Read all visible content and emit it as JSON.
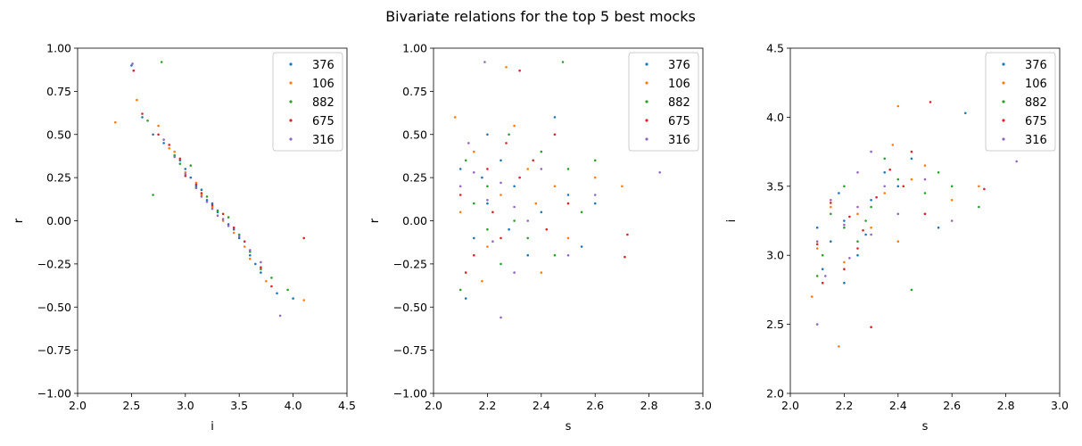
{
  "figure_title": "Bivariate relations for the top 5 best mocks",
  "chart_data": [
    {
      "type": "scatter",
      "title": "",
      "xlabel": "i",
      "ylabel": "r",
      "xlim": [
        2.0,
        4.5
      ],
      "ylim": [
        -1.0,
        1.0
      ],
      "xticks": [
        2.0,
        2.5,
        3.0,
        3.5,
        4.0,
        4.5
      ],
      "yticks": [
        -1.0,
        -0.75,
        -0.5,
        -0.25,
        0.0,
        0.25,
        0.5,
        0.75,
        1.0
      ],
      "xtick_labels": [
        "2.0",
        "2.5",
        "3.0",
        "3.5",
        "4.0",
        "4.5"
      ],
      "ytick_labels": [
        "−1.00",
        "−0.75",
        "−0.50",
        "−0.25",
        "0.00",
        "0.25",
        "0.50",
        "0.75",
        "1.00"
      ],
      "legend_position": "top-right",
      "grid": false,
      "series": [
        {
          "name": "376",
          "color": "#1f77b4",
          "points": [
            [
              3.2,
              0.12
            ],
            [
              3.0,
              0.3
            ],
            [
              3.45,
              -0.05
            ],
            [
              3.6,
              -0.2
            ],
            [
              2.8,
              0.45
            ],
            [
              3.3,
              0.05
            ],
            [
              3.1,
              0.2
            ],
            [
              3.7,
              -0.3
            ],
            [
              2.6,
              0.6
            ],
            [
              3.85,
              -0.42
            ],
            [
              2.5,
              0.9
            ],
            [
              3.25,
              0.1
            ],
            [
              2.95,
              0.35
            ],
            [
              3.5,
              -0.1
            ],
            [
              3.15,
              0.18
            ],
            [
              4.0,
              -0.45
            ],
            [
              2.7,
              0.5
            ],
            [
              3.4,
              -0.02
            ],
            [
              3.05,
              0.25
            ],
            [
              3.65,
              -0.25
            ]
          ]
        },
        {
          "name": "106",
          "color": "#ff7f0e",
          "points": [
            [
              2.35,
              0.57
            ],
            [
              3.15,
              0.15
            ],
            [
              2.9,
              0.4
            ],
            [
              3.55,
              -0.15
            ],
            [
              3.35,
              0.0
            ],
            [
              2.75,
              0.55
            ],
            [
              3.75,
              -0.35
            ],
            [
              3.0,
              0.28
            ],
            [
              3.25,
              0.08
            ],
            [
              2.55,
              0.7
            ],
            [
              4.1,
              -0.46
            ],
            [
              3.45,
              -0.07
            ],
            [
              3.1,
              0.22
            ],
            [
              2.85,
              0.42
            ],
            [
              3.6,
              -0.22
            ]
          ]
        },
        {
          "name": "882",
          "color": "#2ca02c",
          "points": [
            [
              2.78,
              0.92
            ],
            [
              3.05,
              0.32
            ],
            [
              3.5,
              -0.08
            ],
            [
              3.3,
              0.06
            ],
            [
              2.9,
              0.38
            ],
            [
              3.7,
              -0.28
            ],
            [
              3.2,
              0.14
            ],
            [
              3.95,
              -0.4
            ],
            [
              2.65,
              0.58
            ],
            [
              3.4,
              0.02
            ],
            [
              3.1,
              0.19
            ],
            [
              3.6,
              -0.18
            ],
            [
              2.95,
              0.33
            ],
            [
              3.8,
              -0.33
            ],
            [
              2.7,
              0.15
            ]
          ]
        },
        {
          "name": "675",
          "color": "#d62728",
          "points": [
            [
              2.52,
              0.87
            ],
            [
              3.0,
              0.26
            ],
            [
              3.35,
              0.04
            ],
            [
              3.15,
              0.16
            ],
            [
              2.85,
              0.44
            ],
            [
              3.55,
              -0.12
            ],
            [
              3.7,
              -0.27
            ],
            [
              2.6,
              0.62
            ],
            [
              3.25,
              0.09
            ],
            [
              4.1,
              -0.1
            ],
            [
              3.45,
              -0.04
            ],
            [
              2.95,
              0.36
            ],
            [
              3.1,
              0.21
            ],
            [
              3.8,
              -0.38
            ],
            [
              2.75,
              0.5
            ]
          ]
        },
        {
          "name": "316",
          "color": "#9467bd",
          "points": [
            [
              3.2,
              0.11
            ],
            [
              3.3,
              0.03
            ],
            [
              3.1,
              0.19
            ],
            [
              3.4,
              -0.03
            ],
            [
              3.0,
              0.27
            ],
            [
              3.5,
              -0.09
            ],
            [
              2.9,
              0.37
            ],
            [
              3.6,
              -0.17
            ],
            [
              2.8,
              0.47
            ],
            [
              3.7,
              -0.24
            ],
            [
              2.51,
              0.91
            ],
            [
              3.88,
              -0.55
            ],
            [
              3.25,
              0.07
            ],
            [
              3.15,
              0.14
            ],
            [
              3.35,
              0.01
            ]
          ]
        }
      ]
    },
    {
      "type": "scatter",
      "title": "",
      "xlabel": "s",
      "ylabel": "r",
      "xlim": [
        2.0,
        3.0
      ],
      "ylim": [
        -1.0,
        1.0
      ],
      "xticks": [
        2.0,
        2.2,
        2.4,
        2.6,
        2.8,
        3.0
      ],
      "yticks": [
        -1.0,
        -0.75,
        -0.5,
        -0.25,
        0.0,
        0.25,
        0.5,
        0.75,
        1.0
      ],
      "xtick_labels": [
        "2.0",
        "2.2",
        "2.4",
        "2.6",
        "2.8",
        "3.0"
      ],
      "ytick_labels": [
        "−1.00",
        "−0.75",
        "−0.50",
        "−0.25",
        "0.00",
        "0.25",
        "0.50",
        "0.75",
        "1.00"
      ],
      "legend_position": "top-right",
      "grid": false,
      "series": [
        {
          "name": "376",
          "color": "#1f77b4",
          "points": [
            [
              2.2,
              0.1
            ],
            [
              2.3,
              0.2
            ],
            [
              2.15,
              -0.1
            ],
            [
              2.4,
              0.05
            ],
            [
              2.25,
              0.35
            ],
            [
              2.1,
              0.3
            ],
            [
              2.5,
              0.15
            ],
            [
              2.35,
              -0.2
            ],
            [
              2.2,
              0.5
            ],
            [
              2.6,
              0.1
            ],
            [
              2.12,
              -0.45
            ],
            [
              2.45,
              0.6
            ],
            [
              2.28,
              -0.05
            ],
            [
              2.18,
              0.25
            ],
            [
              2.55,
              -0.15
            ]
          ]
        },
        {
          "name": "106",
          "color": "#ff7f0e",
          "points": [
            [
              2.25,
              0.15
            ],
            [
              2.1,
              0.05
            ],
            [
              2.35,
              0.3
            ],
            [
              2.2,
              -0.15
            ],
            [
              2.45,
              0.2
            ],
            [
              2.3,
              0.55
            ],
            [
              2.15,
              0.4
            ],
            [
              2.5,
              -0.1
            ],
            [
              2.4,
              -0.3
            ],
            [
              2.6,
              0.25
            ],
            [
              2.08,
              0.6
            ],
            [
              2.27,
              0.89
            ],
            [
              2.7,
              0.2
            ],
            [
              2.18,
              -0.35
            ],
            [
              2.38,
              0.1
            ]
          ]
        },
        {
          "name": "882",
          "color": "#2ca02c",
          "points": [
            [
              2.2,
              0.2
            ],
            [
              2.3,
              0.0
            ],
            [
              2.12,
              0.35
            ],
            [
              2.4,
              0.4
            ],
            [
              2.25,
              -0.25
            ],
            [
              2.5,
              0.3
            ],
            [
              2.15,
              0.1
            ],
            [
              2.35,
              -0.1
            ],
            [
              2.48,
              0.92
            ],
            [
              2.1,
              -0.4
            ],
            [
              2.55,
              0.05
            ],
            [
              2.28,
              0.5
            ],
            [
              2.2,
              -0.05
            ],
            [
              2.45,
              -0.2
            ],
            [
              2.6,
              0.35
            ]
          ]
        },
        {
          "name": "675",
          "color": "#d62728",
          "points": [
            [
              2.22,
              0.05
            ],
            [
              2.32,
              0.25
            ],
            [
              2.1,
              0.15
            ],
            [
              2.42,
              -0.05
            ],
            [
              2.27,
              0.45
            ],
            [
              2.15,
              -0.2
            ],
            [
              2.5,
              0.1
            ],
            [
              2.37,
              0.35
            ],
            [
              2.2,
              0.3
            ],
            [
              2.32,
              0.87
            ],
            [
              2.72,
              -0.08
            ],
            [
              2.71,
              -0.21
            ],
            [
              2.12,
              -0.3
            ],
            [
              2.45,
              0.5
            ],
            [
              2.25,
              -0.1
            ]
          ]
        },
        {
          "name": "316",
          "color": "#9467bd",
          "points": [
            [
              2.2,
              0.12
            ],
            [
              2.25,
              0.22
            ],
            [
              2.3,
              0.08
            ],
            [
              2.15,
              0.28
            ],
            [
              2.35,
              0.0
            ],
            [
              2.1,
              0.2
            ],
            [
              2.4,
              0.3
            ],
            [
              2.22,
              -0.12
            ],
            [
              2.19,
              0.92
            ],
            [
              2.84,
              0.28
            ],
            [
              2.25,
              -0.56
            ],
            [
              2.5,
              -0.2
            ],
            [
              2.13,
              0.45
            ],
            [
              2.6,
              0.15
            ],
            [
              2.3,
              -0.3
            ]
          ]
        }
      ]
    },
    {
      "type": "scatter",
      "title": "",
      "xlabel": "s",
      "ylabel": "i",
      "xlim": [
        2.0,
        3.0
      ],
      "ylim": [
        2.0,
        4.5
      ],
      "xticks": [
        2.0,
        2.2,
        2.4,
        2.6,
        2.8,
        3.0
      ],
      "yticks": [
        2.0,
        2.5,
        3.0,
        3.5,
        4.0,
        4.5
      ],
      "xtick_labels": [
        "2.0",
        "2.2",
        "2.4",
        "2.6",
        "2.8",
        "3.0"
      ],
      "ytick_labels": [
        "2.0",
        "2.5",
        "3.0",
        "3.5",
        "4.0",
        "4.5"
      ],
      "legend_position": "top-right",
      "grid": false,
      "series": [
        {
          "name": "376",
          "color": "#1f77b4",
          "points": [
            [
              2.2,
              3.25
            ],
            [
              2.3,
              3.4
            ],
            [
              2.15,
              3.1
            ],
            [
              2.4,
              3.5
            ],
            [
              2.25,
              3.0
            ],
            [
              2.1,
              3.2
            ],
            [
              2.5,
              3.3
            ],
            [
              2.35,
              3.6
            ],
            [
              2.2,
              2.8
            ],
            [
              2.65,
              4.03
            ],
            [
              2.12,
              2.9
            ],
            [
              2.45,
              3.7
            ],
            [
              2.28,
              3.15
            ],
            [
              2.18,
              3.45
            ],
            [
              2.55,
              3.2
            ]
          ]
        },
        {
          "name": "106",
          "color": "#ff7f0e",
          "points": [
            [
              2.25,
              3.3
            ],
            [
              2.1,
              3.05
            ],
            [
              2.35,
              3.45
            ],
            [
              2.2,
              2.95
            ],
            [
              2.45,
              3.55
            ],
            [
              2.3,
              3.2
            ],
            [
              2.15,
              3.35
            ],
            [
              2.5,
              3.65
            ],
            [
              2.4,
              3.1
            ],
            [
              2.6,
              3.4
            ],
            [
              2.18,
              2.34
            ],
            [
              2.4,
              4.08
            ],
            [
              2.7,
              3.5
            ],
            [
              2.08,
              2.7
            ],
            [
              2.38,
              3.8
            ]
          ]
        },
        {
          "name": "882",
          "color": "#2ca02c",
          "points": [
            [
              2.2,
              3.2
            ],
            [
              2.3,
              3.35
            ],
            [
              2.12,
              3.0
            ],
            [
              2.4,
              3.55
            ],
            [
              2.25,
              3.1
            ],
            [
              2.5,
              3.45
            ],
            [
              2.15,
              3.3
            ],
            [
              2.35,
              3.7
            ],
            [
              2.45,
              2.75
            ],
            [
              2.1,
              2.85
            ],
            [
              2.55,
              3.6
            ],
            [
              2.28,
              3.25
            ],
            [
              2.2,
              3.5
            ],
            [
              2.7,
              3.35
            ],
            [
              2.6,
              3.5
            ]
          ]
        },
        {
          "name": "675",
          "color": "#d62728",
          "points": [
            [
              2.22,
              3.28
            ],
            [
              2.32,
              3.42
            ],
            [
              2.1,
              3.08
            ],
            [
              2.42,
              3.5
            ],
            [
              2.27,
              3.18
            ],
            [
              2.15,
              3.38
            ],
            [
              2.5,
              3.3
            ],
            [
              2.37,
              3.62
            ],
            [
              2.2,
              2.9
            ],
            [
              2.52,
              4.11
            ],
            [
              2.3,
              2.48
            ],
            [
              2.72,
              3.48
            ],
            [
              2.12,
              2.8
            ],
            [
              2.45,
              3.75
            ],
            [
              2.25,
              3.05
            ]
          ]
        },
        {
          "name": "316",
          "color": "#9467bd",
          "points": [
            [
              2.2,
              3.22
            ],
            [
              2.25,
              3.35
            ],
            [
              2.3,
              3.15
            ],
            [
              2.15,
              3.4
            ],
            [
              2.35,
              3.5
            ],
            [
              2.1,
              3.1
            ],
            [
              2.4,
              3.3
            ],
            [
              2.22,
              2.98
            ],
            [
              2.84,
              3.68
            ],
            [
              2.1,
              2.5
            ],
            [
              2.25,
              3.6
            ],
            [
              2.5,
              3.55
            ],
            [
              2.13,
              2.85
            ],
            [
              2.6,
              3.25
            ],
            [
              2.3,
              3.75
            ]
          ]
        }
      ]
    }
  ]
}
